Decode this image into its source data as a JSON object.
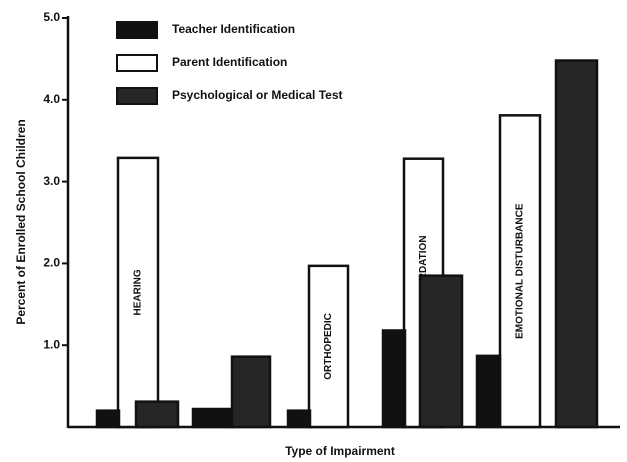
{
  "chart_data": {
    "type": "bar",
    "y_label": "Percent of Enrolled School Children",
    "x_label": "Type of Impairment",
    "categories": [
      "HEARING",
      null,
      "ORTHOPEDIC",
      "MENTAL RETARDATION",
      "EMOTIONAL DISTURBANCE"
    ],
    "series": [
      {
        "name": "Teacher Identification",
        "color": "#111111",
        "values": [
          0.2,
          0.22,
          0.2,
          1.18,
          0.87
        ]
      },
      {
        "name": "Parent Identification",
        "color": "#ffffff",
        "values": [
          3.29,
          null,
          1.97,
          3.28,
          3.81
        ]
      },
      {
        "name": "Psychological or Medical Test",
        "color": "#262626",
        "values": [
          0.31,
          0.86,
          null,
          1.85,
          4.48
        ]
      }
    ],
    "ylim": [
      0,
      5
    ],
    "yticks": [
      {
        "value": 1,
        "label": "1.0"
      },
      {
        "value": 2,
        "label": "2.0"
      },
      {
        "value": 3,
        "label": "3.0"
      },
      {
        "value": 4,
        "label": "4.0"
      },
      {
        "value": 5,
        "label": "5.0"
      }
    ]
  }
}
